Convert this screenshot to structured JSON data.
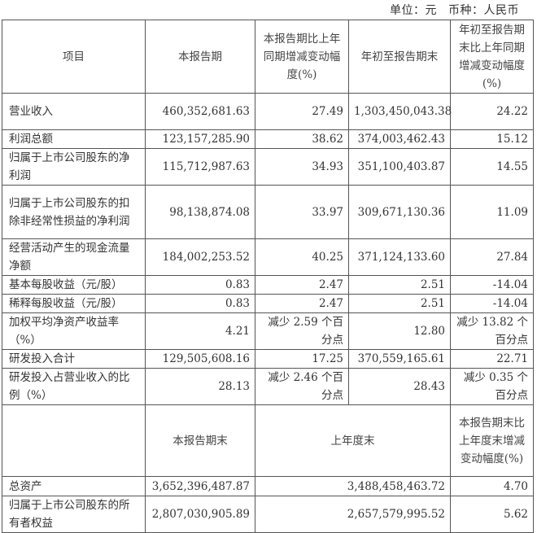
{
  "unit_label": "单位：元",
  "currency_label": "币种：人民币",
  "header1": [
    "项目",
    "本报告期",
    "本报告期比上年同期增减变动幅度(%)",
    "年初至报告期末",
    "年初至报告期末比上年同期增减变动幅度(%)"
  ],
  "rows1": [
    {
      "item": "营业收入",
      "cur": "460,352,681.63",
      "chg": "27.49",
      "ytd": "1,303,450,043.38",
      "ytdchg": "24.22"
    },
    {
      "item": "利润总额",
      "cur": "123,157,285.90",
      "chg": "38.62",
      "ytd": "374,003,462.43",
      "ytdchg": "15.12"
    },
    {
      "item": "归属于上市公司股东的净利润",
      "cur": "115,712,987.63",
      "chg": "34.93",
      "ytd": "351,100,403.87",
      "ytdchg": "14.55"
    },
    {
      "item": "归属于上市公司股东的扣除非经常性损益的净利润",
      "cur": "98,138,874.08",
      "chg": "33.97",
      "ytd": "309,671,130.36",
      "ytdchg": "11.09"
    },
    {
      "item": "经营活动产生的现金流量净额",
      "cur": "184,002,253.52",
      "chg": "40.25",
      "ytd": "371,124,133.60",
      "ytdchg": "27.84"
    },
    {
      "item": "基本每股收益（元/股）",
      "cur": "0.83",
      "chg": "2.47",
      "ytd": "2.51",
      "ytdchg": "-14.04"
    },
    {
      "item": "稀释每股收益（元/股）",
      "cur": "0.83",
      "chg": "2.47",
      "ytd": "2.51",
      "ytdchg": "-14.04"
    },
    {
      "item": "加权平均净资产收益率（%）",
      "cur": "4.21",
      "chg": "减少 2.59 个百分点",
      "ytd": "12.80",
      "ytdchg": "减少 13.82 个百分点"
    },
    {
      "item": "研发投入合计",
      "cur": "129,505,608.16",
      "chg": "17.25",
      "ytd": "370,559,165.61",
      "ytdchg": "22.71"
    },
    {
      "item": "研发投入占营业收入的比例（%）",
      "cur": "28.13",
      "chg": "减少 2.46 个百分点",
      "ytd": "28.43",
      "ytdchg": "减少 0.35 个百分点"
    }
  ],
  "header2": [
    "",
    "本报告期末",
    "上年度末",
    "本报告期末比上年度末增减变动幅度(%)"
  ],
  "rows2": [
    {
      "item": "总资产",
      "cur": "3,652,396,487.87",
      "prev": "3,488,458,463.72",
      "chg": "4.70"
    },
    {
      "item": "归属于上市公司股东的所有者权益",
      "cur": "2,807,030,905.89",
      "prev": "2,657,579,995.52",
      "chg": "5.62"
    }
  ]
}
